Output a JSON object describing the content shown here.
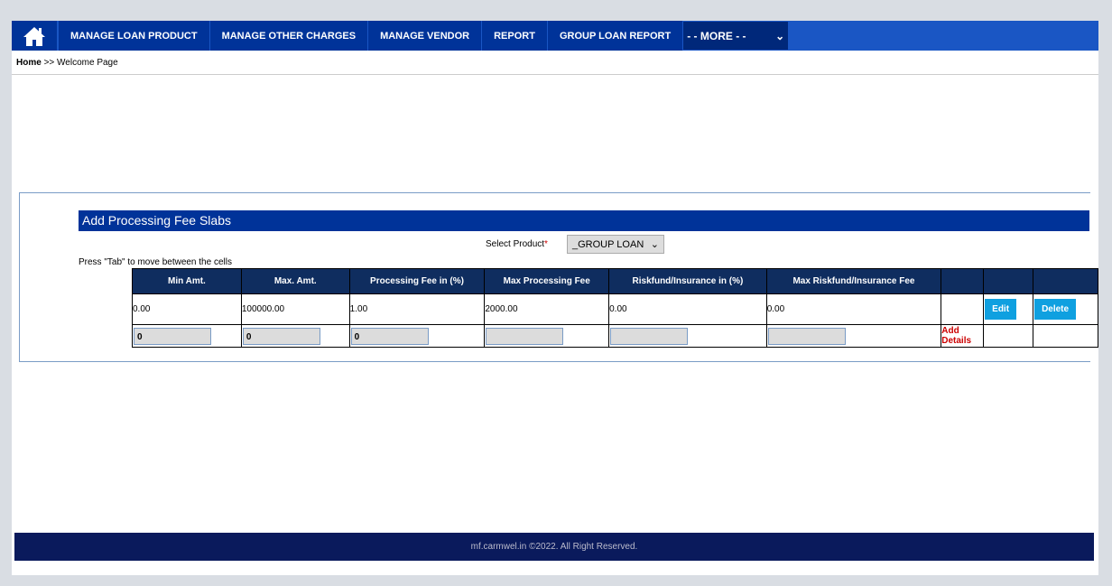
{
  "nav": {
    "items": [
      "MANAGE LOAN PRODUCT",
      "MANAGE OTHER CHARGES",
      "MANAGE VENDOR",
      "REPORT",
      "GROUP LOAN REPORT"
    ],
    "more": "- - MORE - -"
  },
  "breadcrumb": {
    "home": "Home",
    "sep": ">>",
    "current": "Welcome Page"
  },
  "panel": {
    "title": "Add Processing Fee Slabs",
    "select_label": "Select Product",
    "required": "*",
    "select_value": "_GROUP LOAN",
    "hint": "Press \"Tab\" to move between the cells"
  },
  "table": {
    "headers": [
      "Min Amt.",
      "Max. Amt.",
      "Processing Fee in (%)",
      "Max Processing Fee",
      "Riskfund/Insurance in (%)",
      "Max Riskfund/Insurance Fee",
      "",
      "",
      ""
    ],
    "rows": [
      [
        "0.00",
        "100000.00",
        "1.00",
        "2000.00",
        "0.00",
        "0.00"
      ]
    ],
    "inputs": [
      "0",
      "0",
      "0",
      "",
      "",
      ""
    ],
    "edit": "Edit",
    "delete": "Delete",
    "add": "Add Details"
  },
  "footer": "mf.carmwel.in ©2022. All Right Reserved."
}
